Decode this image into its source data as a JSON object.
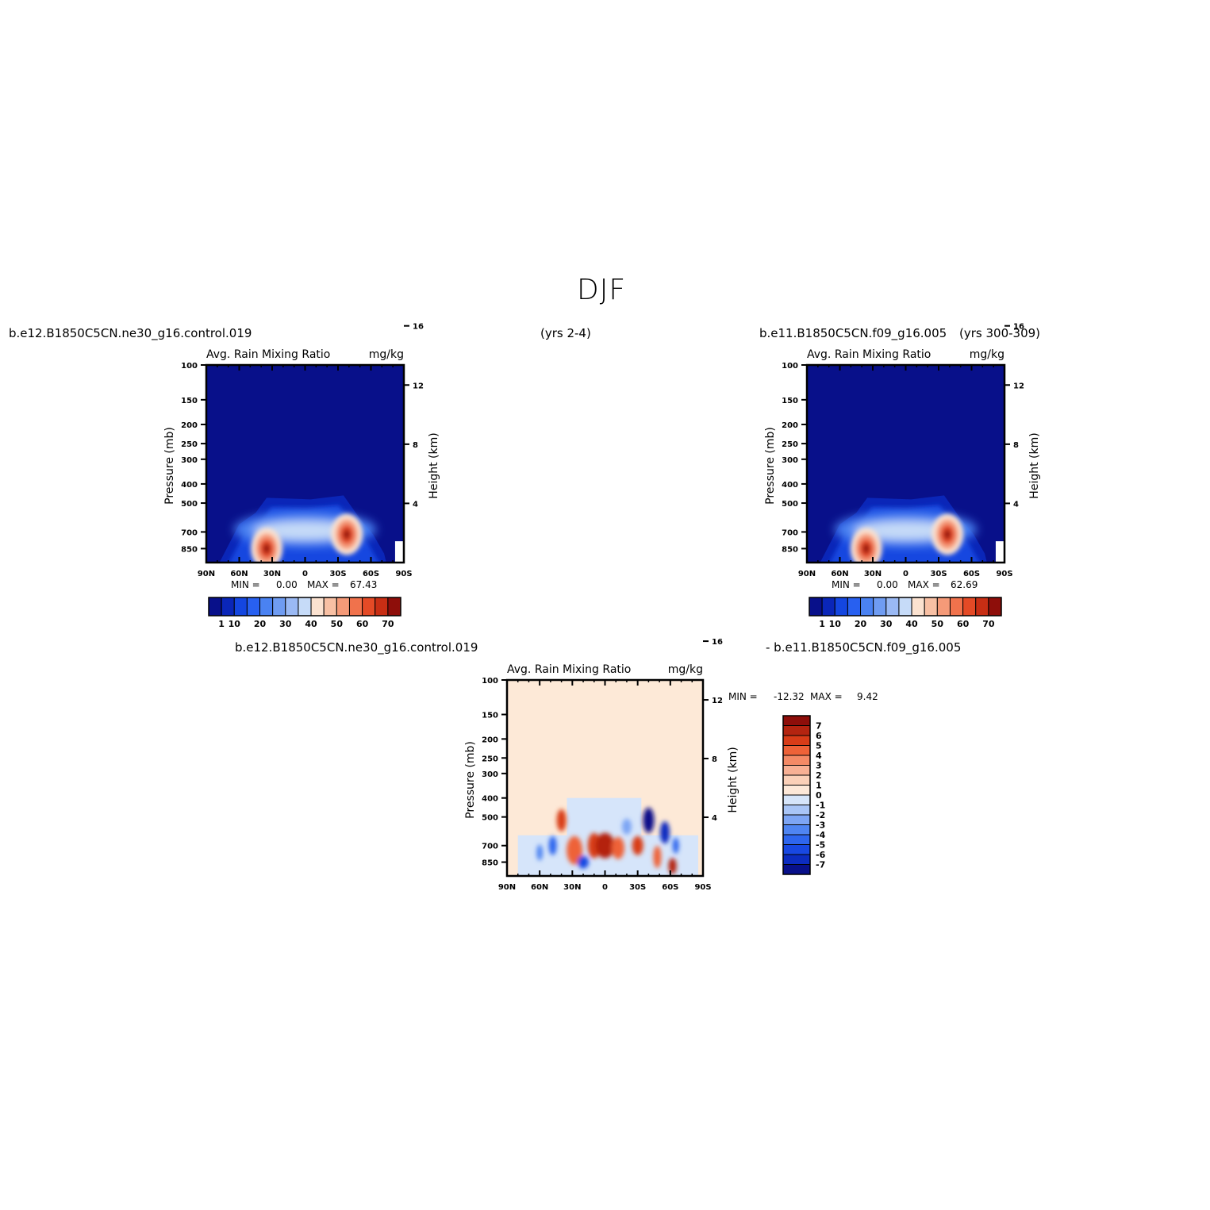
{
  "figure": {
    "title": "DJF",
    "case_left": "b.e12.B1850C5CN.ne30_g16.control.019",
    "years_left": "(yrs 2-4)",
    "case_right": "b.e11.B1850C5CN.f09_g16.005",
    "years_right": "(yrs 300-309)",
    "diff_case_a": "b.e12.B1850C5CN.ne30_g16.control.019",
    "diff_case_b": "- b.e11.B1850C5CN.f09_g16.005"
  },
  "colors": {
    "field_ramp": [
      "#08108a",
      "#0a26b8",
      "#1446e0",
      "#2860f0",
      "#4a82f2",
      "#6f9cf2",
      "#9ab9f4",
      "#c6dbf8",
      "#fbe2d0",
      "#f8c0a4",
      "#f59a78",
      "#f0724c",
      "#e44a26",
      "#c82e14",
      "#8e0e0a"
    ],
    "diff_ramp": [
      "#08108a",
      "#0c2cc0",
      "#1848e2",
      "#2e66ee",
      "#4f85f2",
      "#7da5f4",
      "#a9c5f6",
      "#d6e5fa",
      "#fde8d8",
      "#fbd0b8",
      "#f8b094",
      "#f48a66",
      "#ee6238",
      "#d83c18",
      "#b42410",
      "#8e0e0a"
    ],
    "diff_background": "#fde9d7"
  },
  "panels": [
    {
      "id": "control",
      "left_title": "Avg. Rain Mixing Ratio",
      "right_title": "mg/kg",
      "ylabel": "Pressure (mb)",
      "y2label": "Height (km)",
      "min_label": "MIN =",
      "min_value": "0.00",
      "max_label": "MAX =",
      "max_value": "67.43"
    },
    {
      "id": "experiment",
      "left_title": "Avg. Rain Mixing Ratio",
      "right_title": "mg/kg",
      "ylabel": "Pressure (mb)",
      "y2label": "Height (km)",
      "min_label": "MIN =",
      "min_value": "0.00",
      "max_label": "MAX =",
      "max_value": "62.69"
    },
    {
      "id": "difference",
      "left_title": "Avg. Rain Mixing Ratio",
      "right_title": "mg/kg",
      "ylabel": "Pressure (mb)",
      "y2label": "Height (km)",
      "min_label": "MIN =",
      "min_value": "-12.32",
      "max_label": "MAX =",
      "max_value": "9.42"
    }
  ],
  "chart_data": [
    {
      "type": "heatmap",
      "title": "Avg. Rain Mixing Ratio",
      "units": "mg/kg",
      "xlabel": "",
      "ylabel": "Pressure (mb)",
      "y2label": "Height (km)",
      "x_ticks": [
        "90N",
        "60N",
        "30N",
        "0",
        "30S",
        "60S",
        "90S"
      ],
      "x_values": [
        90,
        60,
        30,
        0,
        -30,
        -60,
        -90
      ],
      "y_ticks": [
        "100",
        "150",
        "200",
        "250",
        "300",
        "400",
        "500",
        "700",
        "850"
      ],
      "y2_ticks": [
        "16",
        "12",
        "8",
        "4"
      ],
      "ylim": [
        100,
        1000
      ],
      "y_scale": "log",
      "min": 0.0,
      "max": 67.43,
      "peaks": [
        {
          "lat": 35,
          "p": 850,
          "value": 67
        },
        {
          "lat": -38,
          "p": 720,
          "value": 65
        }
      ],
      "colorbar_ticks": [
        "1",
        "10",
        "20",
        "30",
        "40",
        "50",
        "60",
        "70"
      ],
      "colorbar_levels": [
        1,
        5,
        10,
        15,
        20,
        25,
        30,
        35,
        40,
        45,
        50,
        55,
        60,
        65,
        70
      ]
    },
    {
      "type": "heatmap",
      "title": "Avg. Rain Mixing Ratio",
      "units": "mg/kg",
      "xlabel": "",
      "ylabel": "Pressure (mb)",
      "y2label": "Height (km)",
      "x_ticks": [
        "90N",
        "60N",
        "30N",
        "0",
        "30S",
        "60S",
        "90S"
      ],
      "x_values": [
        90,
        60,
        30,
        0,
        -30,
        -60,
        -90
      ],
      "y_ticks": [
        "100",
        "150",
        "200",
        "250",
        "300",
        "400",
        "500",
        "700",
        "850"
      ],
      "y2_ticks": [
        "16",
        "12",
        "8",
        "4"
      ],
      "ylim": [
        100,
        1000
      ],
      "y_scale": "log",
      "min": 0.0,
      "max": 62.69,
      "peaks": [
        {
          "lat": 36,
          "p": 850,
          "value": 60
        },
        {
          "lat": -38,
          "p": 720,
          "value": 62
        }
      ],
      "colorbar_ticks": [
        "1",
        "10",
        "20",
        "30",
        "40",
        "50",
        "60",
        "70"
      ],
      "colorbar_levels": [
        1,
        5,
        10,
        15,
        20,
        25,
        30,
        35,
        40,
        45,
        50,
        55,
        60,
        65,
        70
      ]
    },
    {
      "type": "heatmap",
      "title": "Avg. Rain Mixing Ratio",
      "units": "mg/kg",
      "xlabel": "",
      "ylabel": "Pressure (mb)",
      "y2label": "Height (km)",
      "x_ticks": [
        "90N",
        "60N",
        "30N",
        "0",
        "30S",
        "60S",
        "90S"
      ],
      "x_values": [
        90,
        60,
        30,
        0,
        -30,
        -60,
        -90
      ],
      "y_ticks": [
        "100",
        "150",
        "200",
        "250",
        "300",
        "400",
        "500",
        "700",
        "850"
      ],
      "y2_ticks": [
        "16",
        "12",
        "8",
        "4"
      ],
      "ylim": [
        100,
        1000
      ],
      "y_scale": "log",
      "min": -12.32,
      "max": 9.42,
      "colorbar_ticks": [
        "7",
        "6",
        "5",
        "4",
        "3",
        "2",
        "1",
        "0",
        "-1",
        "-2",
        "-3",
        "-4",
        "-5",
        "-6",
        "-7"
      ],
      "colorbar_levels": [
        -7,
        -6,
        -5,
        -4,
        -3,
        -2,
        -1,
        0,
        1,
        2,
        3,
        4,
        5,
        6,
        7
      ]
    }
  ]
}
